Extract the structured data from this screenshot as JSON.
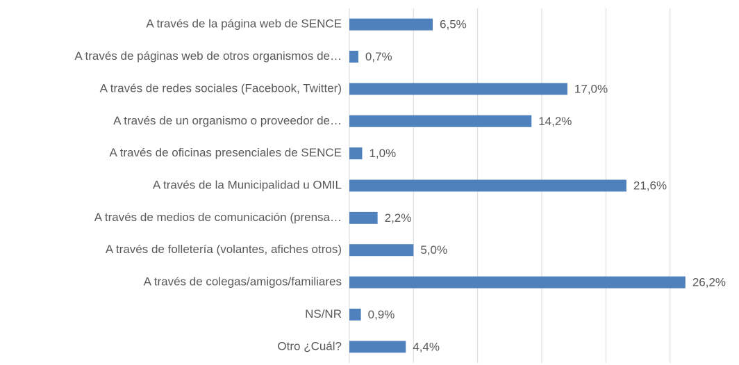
{
  "chart_data": {
    "type": "bar",
    "orientation": "horizontal",
    "categories": [
      "A través de la página web de SENCE",
      "A través de páginas web de otros organismos de…",
      "A través de redes sociales (Facebook, Twitter)",
      "A través de un organismo o proveedor de…",
      "A través de oficinas presenciales de SENCE",
      "A través de la Municipalidad u OMIL",
      "A través de medios de comunicación (prensa…",
      "A través de folletería (volantes, afiches otros)",
      "A través de colegas/amigos/familiares",
      "NS/NR",
      "Otro ¿Cuál?"
    ],
    "values": [
      6.5,
      0.7,
      17.0,
      14.2,
      1.0,
      21.6,
      2.2,
      5.0,
      26.2,
      0.9,
      4.4
    ],
    "value_labels": [
      "6,5%",
      "0,7%",
      "17,0%",
      "14,2%",
      "1,0%",
      "21,6%",
      "2,2%",
      "5,0%",
      "26,2%",
      "0,9%",
      "4,4%"
    ],
    "color": "#4f81bd",
    "xlim": [
      0,
      30
    ],
    "xticks": [
      0,
      5,
      10,
      15,
      20,
      25
    ],
    "grid": true
  }
}
